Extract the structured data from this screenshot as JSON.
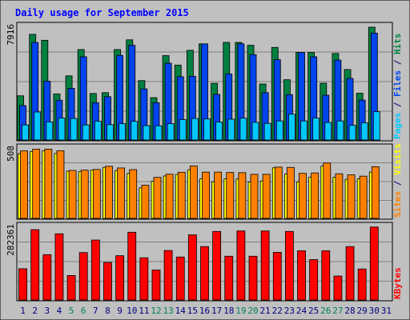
{
  "chart_data": {
    "type": "bar",
    "title": "Daily usage for September 2015",
    "days": [
      "1",
      "2",
      "3",
      "4",
      "5",
      "6",
      "7",
      "8",
      "9",
      "10",
      "11",
      "12",
      "13",
      "14",
      "15",
      "16",
      "17",
      "18",
      "19",
      "20",
      "21",
      "22",
      "23",
      "24",
      "25",
      "26",
      "27",
      "28",
      "29",
      "30",
      "31"
    ],
    "weekend_days": [
      "5",
      "6",
      "12",
      "13",
      "19",
      "20",
      "26",
      "27"
    ],
    "panels": [
      {
        "name": "hits-panel",
        "scale_label": "7916",
        "ymax": 7916,
        "series": [
          {
            "name": "Pages",
            "color": "#00c8ff",
            "values": [
              1050,
              1950,
              1260,
              1530,
              1500,
              1050,
              1310,
              1070,
              1140,
              1300,
              1000,
              990,
              1140,
              1420,
              1500,
              1470,
              1250,
              1450,
              1520,
              1230,
              1160,
              1330,
              1800,
              1330,
              1530,
              1220,
              1330,
              1020,
              1200,
              1970,
              null
            ]
          },
          {
            "name": "Files",
            "color": "#0044ee",
            "values": [
              2400,
              6800,
              4100,
              2770,
              3600,
              5800,
              2600,
              3020,
              5900,
              6600,
              3560,
              2600,
              5350,
              4410,
              4440,
              6700,
              3180,
              4600,
              6700,
              5950,
              3300,
              5600,
              3160,
              6100,
              5800,
              3120,
              5570,
              4290,
              2780,
              7450,
              null
            ]
          },
          {
            "name": "Hits",
            "color": "#008040",
            "values": [
              3080,
              7360,
              6950,
              3210,
              4470,
              6300,
              3240,
              3300,
              6300,
              6980,
              4140,
              2950,
              5880,
              5220,
              6250,
              6700,
              3950,
              6800,
              6800,
              6600,
              3900,
              6450,
              4200,
              6100,
              6100,
              3960,
              6030,
              4910,
              3260,
              7860,
              null
            ]
          }
        ],
        "axis_label_parts": [
          {
            "text": "Pages",
            "color": "#00c8ff"
          },
          {
            "text": " / ",
            "color": "#000080"
          },
          {
            "text": "Files",
            "color": "#0044ee"
          },
          {
            "text": " / ",
            "color": "#000080"
          },
          {
            "text": "Hits",
            "color": "#008040"
          }
        ]
      },
      {
        "name": "visits-panel",
        "scale_label": "508",
        "ymax": 508,
        "series": [
          {
            "name": "Sites",
            "color": "#ff8000",
            "values": [
              487,
              500,
              500,
              488,
              346,
              348,
              353,
              376,
              364,
              352,
              240,
              296,
              319,
              333,
              378,
              334,
              334,
              331,
              330,
              318,
              318,
              370,
              368,
              325,
              328,
              400,
              322,
              314,
              305,
              373,
              null
            ]
          },
          {
            "name": "Visits",
            "color": "#ffff00",
            "values": [
              467,
              483,
              487,
              468,
              341,
              337,
              349,
              368,
              345,
              324,
              220,
              268,
              306,
              317,
              351,
              286,
              264,
              285,
              284,
              262,
              270,
              365,
              320,
              264,
              298,
              377,
              297,
              282,
              285,
              334,
              null
            ]
          }
        ],
        "axis_label_parts": [
          {
            "text": "Sites",
            "color": "#ff8000"
          },
          {
            "text": " / ",
            "color": "#000080"
          },
          {
            "text": "Visits",
            "color": "#ffff00"
          }
        ]
      },
      {
        "name": "kbytes-panel",
        "scale_label": "282361",
        "ymax": 282361,
        "series": [
          {
            "name": "KBytes",
            "color": "#ff0000",
            "values": [
              120000,
              270000,
              174000,
              254000,
              94000,
              182000,
              230000,
              144000,
              170000,
              260000,
              162000,
              115000,
              190000,
              165000,
              250000,
              205000,
              263000,
              168000,
              265000,
              168000,
              265000,
              183000,
              263000,
              189000,
              155000,
              189000,
              92000,
              205000,
              119000,
              280000,
              null
            ]
          }
        ],
        "axis_label_parts": [
          {
            "text": "KBytes",
            "color": "#ff0000"
          }
        ]
      }
    ],
    "colors": {
      "background": "#c0c0c0",
      "title": "#0000ff",
      "weekday": "#000080",
      "weekend": "#00805c"
    }
  }
}
